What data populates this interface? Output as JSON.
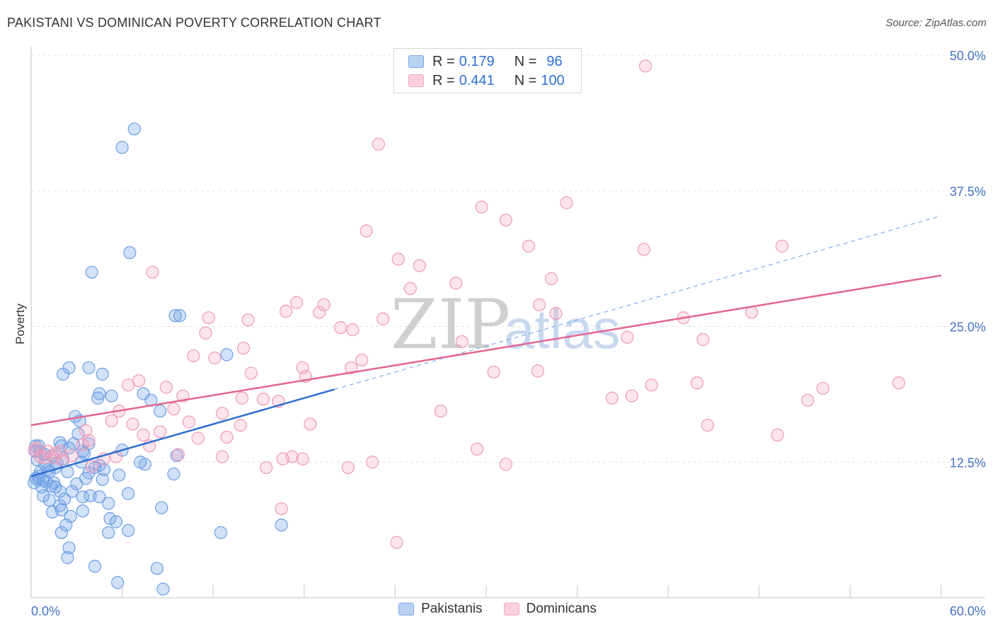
{
  "header": {
    "title": "PAKISTANI VS DOMINICAN POVERTY CORRELATION CHART",
    "source": "Source: ZipAtlas.com"
  },
  "legend": {
    "rows": [
      {
        "r_label": "R = ",
        "r_value": "0.179",
        "n_label": "N = ",
        "n_value": "96",
        "color": "#7aa8e8"
      },
      {
        "r_label": "R = ",
        "r_value": "0.441",
        "n_label": "N = ",
        "n_value": "100",
        "color": "#f4a3bd"
      }
    ]
  },
  "bottom_legend": [
    {
      "label": "Pakistanis",
      "color": "#7aa8e8"
    },
    {
      "label": "Dominicans",
      "color": "#f4a3bd"
    }
  ],
  "watermark": {
    "zip": "ZIP",
    "atlas": "atlas"
  },
  "chart_data": {
    "type": "scatter",
    "title": "PAKISTANI VS DOMINICAN POVERTY CORRELATION CHART",
    "ylabel": "Poverty",
    "xlim": [
      0,
      60
    ],
    "ylim": [
      0,
      50
    ],
    "x_tick_labels": [
      "0.0%",
      "60.0%"
    ],
    "y_ticks": [
      12.5,
      25.0,
      37.5,
      50.0
    ],
    "y_tick_labels": [
      "12.5%",
      "25.0%",
      "37.5%",
      "50.0%"
    ],
    "grid": true,
    "series": [
      {
        "name": "Pakistanis",
        "color": "#4f8ad9",
        "trend": {
          "x0": 0,
          "y0": 11.2,
          "x1": 20,
          "y1": 19.2,
          "dashed_to_x": 60,
          "dashed_to_y": 35.2
        },
        "points": [
          [
            6.8,
            43.2
          ],
          [
            6.0,
            41.5
          ],
          [
            6.5,
            31.8
          ],
          [
            4.0,
            30.0
          ],
          [
            9.5,
            26.0
          ],
          [
            9.8,
            26.0
          ],
          [
            12.9,
            22.4
          ],
          [
            2.5,
            21.2
          ],
          [
            3.8,
            21.2
          ],
          [
            2.1,
            20.6
          ],
          [
            4.7,
            20.6
          ],
          [
            4.5,
            18.8
          ],
          [
            5.3,
            18.6
          ],
          [
            4.4,
            18.4
          ],
          [
            7.4,
            18.8
          ],
          [
            7.9,
            18.2
          ],
          [
            8.5,
            17.2
          ],
          [
            2.9,
            16.7
          ],
          [
            3.2,
            16.3
          ],
          [
            0.3,
            14.0
          ],
          [
            0.5,
            14.0
          ],
          [
            0.3,
            13.5
          ],
          [
            0.6,
            13.5
          ],
          [
            1.4,
            13.1
          ],
          [
            2.1,
            12.8
          ],
          [
            0.9,
            12.3
          ],
          [
            1.6,
            12.0
          ],
          [
            0.6,
            11.6
          ],
          [
            0.5,
            11.2
          ],
          [
            1.2,
            11.6
          ],
          [
            2.4,
            11.6
          ],
          [
            0.3,
            11.0
          ],
          [
            0.5,
            10.9
          ],
          [
            0.8,
            10.8
          ],
          [
            1.0,
            10.7
          ],
          [
            0.2,
            10.6
          ],
          [
            1.5,
            10.6
          ],
          [
            2.8,
            14.2
          ],
          [
            3.4,
            13.5
          ],
          [
            3.8,
            14.2
          ],
          [
            2.5,
            13.8
          ],
          [
            1.9,
            14.3
          ],
          [
            3.5,
            13.3
          ],
          [
            3.1,
            15.1
          ],
          [
            4.5,
            12.2
          ],
          [
            4.8,
            11.8
          ],
          [
            3.8,
            11.5
          ],
          [
            3.6,
            11.0
          ],
          [
            6.0,
            13.6
          ],
          [
            5.8,
            11.3
          ],
          [
            7.5,
            12.3
          ],
          [
            9.4,
            11.4
          ],
          [
            9.6,
            13.1
          ],
          [
            1.9,
            9.8
          ],
          [
            2.7,
            9.8
          ],
          [
            3.4,
            9.3
          ],
          [
            3.9,
            9.4
          ],
          [
            4.5,
            9.3
          ],
          [
            1.2,
            9.0
          ],
          [
            0.8,
            9.4
          ],
          [
            6.4,
            9.6
          ],
          [
            1.9,
            8.5
          ],
          [
            1.4,
            7.9
          ],
          [
            2.0,
            8.1
          ],
          [
            3.4,
            8.0
          ],
          [
            5.1,
            8.7
          ],
          [
            8.6,
            8.3
          ],
          [
            5.2,
            7.3
          ],
          [
            5.6,
            7.0
          ],
          [
            2.3,
            6.7
          ],
          [
            2.0,
            6.0
          ],
          [
            2.6,
            7.5
          ],
          [
            5.1,
            6.0
          ],
          [
            6.4,
            6.2
          ],
          [
            12.5,
            6.0
          ],
          [
            16.5,
            6.7
          ],
          [
            2.5,
            4.6
          ],
          [
            2.4,
            3.7
          ],
          [
            4.2,
            2.9
          ],
          [
            8.3,
            2.7
          ],
          [
            5.7,
            1.4
          ],
          [
            8.7,
            0.8
          ],
          [
            1.1,
            11.8
          ],
          [
            1.6,
            10.2
          ],
          [
            4.2,
            12.0
          ],
          [
            3.3,
            12.5
          ],
          [
            2.0,
            14.0
          ],
          [
            0.4,
            12.7
          ],
          [
            1.3,
            10.3
          ],
          [
            0.9,
            13.2
          ],
          [
            2.2,
            9.1
          ],
          [
            3.0,
            10.5
          ],
          [
            7.2,
            12.5
          ],
          [
            4.7,
            10.9
          ],
          [
            1.7,
            12.4
          ],
          [
            0.7,
            10.2
          ]
        ]
      },
      {
        "name": "Dominicans",
        "color": "#ef8fae",
        "trend": {
          "x0": 0,
          "y0": 15.9,
          "x1": 60,
          "y1": 29.7
        },
        "points": [
          [
            40.5,
            49.0
          ],
          [
            22.9,
            41.8
          ],
          [
            29.7,
            36.0
          ],
          [
            35.3,
            36.4
          ],
          [
            22.1,
            33.8
          ],
          [
            31.3,
            34.8
          ],
          [
            32.8,
            32.4
          ],
          [
            40.4,
            32.1
          ],
          [
            49.5,
            32.4
          ],
          [
            24.2,
            31.2
          ],
          [
            8.0,
            30.0
          ],
          [
            25.6,
            30.6
          ],
          [
            34.3,
            29.4
          ],
          [
            28.0,
            29.0
          ],
          [
            25.0,
            28.5
          ],
          [
            17.5,
            27.2
          ],
          [
            19.3,
            27.0
          ],
          [
            33.5,
            27.0
          ],
          [
            19.0,
            26.3
          ],
          [
            16.8,
            26.4
          ],
          [
            34.6,
            26.2
          ],
          [
            11.7,
            25.8
          ],
          [
            14.3,
            25.6
          ],
          [
            23.2,
            25.7
          ],
          [
            43.0,
            25.8
          ],
          [
            47.5,
            26.3
          ],
          [
            20.4,
            24.9
          ],
          [
            21.2,
            24.7
          ],
          [
            11.5,
            24.4
          ],
          [
            39.3,
            24.0
          ],
          [
            44.3,
            23.8
          ],
          [
            28.4,
            23.6
          ],
          [
            10.7,
            22.3
          ],
          [
            12.1,
            22.1
          ],
          [
            14.0,
            23.0
          ],
          [
            21.8,
            21.9
          ],
          [
            17.9,
            21.2
          ],
          [
            21.1,
            21.2
          ],
          [
            14.5,
            20.7
          ],
          [
            18.1,
            20.4
          ],
          [
            30.5,
            20.8
          ],
          [
            33.4,
            20.9
          ],
          [
            6.4,
            19.6
          ],
          [
            7.1,
            20.0
          ],
          [
            8.9,
            19.4
          ],
          [
            40.9,
            19.6
          ],
          [
            43.9,
            19.8
          ],
          [
            57.2,
            19.8
          ],
          [
            52.2,
            19.3
          ],
          [
            10.0,
            18.6
          ],
          [
            13.9,
            18.4
          ],
          [
            15.3,
            18.3
          ],
          [
            16.3,
            18.1
          ],
          [
            38.3,
            18.4
          ],
          [
            39.6,
            18.6
          ],
          [
            51.2,
            18.2
          ],
          [
            5.8,
            17.2
          ],
          [
            9.4,
            17.4
          ],
          [
            12.6,
            17.0
          ],
          [
            27.0,
            17.2
          ],
          [
            5.3,
            16.3
          ],
          [
            6.7,
            16.0
          ],
          [
            10.4,
            16.2
          ],
          [
            13.8,
            15.9
          ],
          [
            18.4,
            16.0
          ],
          [
            44.6,
            15.9
          ],
          [
            49.2,
            15.0
          ],
          [
            3.6,
            15.4
          ],
          [
            7.4,
            15.0
          ],
          [
            8.5,
            15.3
          ],
          [
            11.0,
            14.7
          ],
          [
            12.9,
            14.8
          ],
          [
            3.4,
            14.1
          ],
          [
            7.8,
            14.0
          ],
          [
            1.1,
            13.5
          ],
          [
            1.9,
            13.5
          ],
          [
            3.8,
            14.5
          ],
          [
            4.8,
            12.8
          ],
          [
            9.7,
            13.2
          ],
          [
            12.6,
            13.0
          ],
          [
            17.2,
            13.0
          ],
          [
            0.4,
            13.8
          ],
          [
            0.9,
            12.9
          ],
          [
            2.1,
            12.6
          ],
          [
            4.0,
            12.1
          ],
          [
            15.5,
            12.0
          ],
          [
            16.6,
            12.8
          ],
          [
            17.9,
            12.8
          ],
          [
            20.9,
            12.0
          ],
          [
            22.5,
            12.5
          ],
          [
            29.4,
            13.7
          ],
          [
            31.3,
            12.3
          ],
          [
            16.5,
            8.2
          ],
          [
            24.1,
            5.1
          ],
          [
            0.6,
            13.0
          ],
          [
            1.5,
            12.9
          ],
          [
            2.7,
            13.1
          ],
          [
            0.2,
            13.6
          ],
          [
            5.6,
            13.0
          ],
          [
            1.6,
            13.3
          ]
        ]
      }
    ]
  }
}
